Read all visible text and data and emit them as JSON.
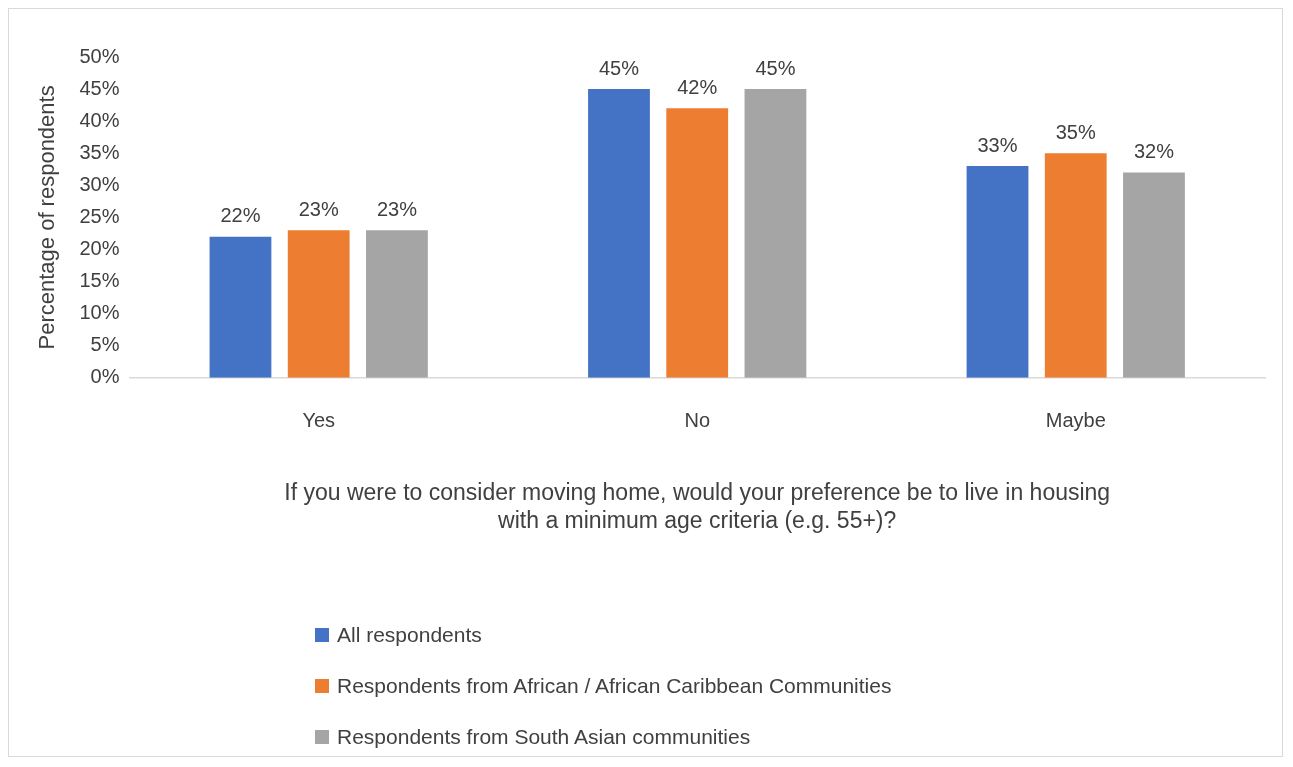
{
  "chart_data": {
    "type": "bar",
    "xlabel": "If you were to consider moving home, would your preference be to live in housing with a minimum age criteria (e.g. 55+)?",
    "ylabel": "Percentage of respondents",
    "categories": [
      "Yes",
      "No",
      "Maybe"
    ],
    "series": [
      {
        "name": "All respondents",
        "color": "#4472c4",
        "values": [
          22,
          45,
          33
        ],
        "value_labels": [
          "22%",
          "45%",
          "33%"
        ]
      },
      {
        "name": "Respondents from African / African Caribbean Communities",
        "color": "#ed7d31",
        "values": [
          23,
          42,
          35
        ],
        "value_labels": [
          "23%",
          "42%",
          "35%"
        ]
      },
      {
        "name": "Respondents from South Asian communities",
        "color": "#a5a5a5",
        "values": [
          23,
          45,
          32
        ],
        "value_labels": [
          "23%",
          "45%",
          "32%"
        ]
      }
    ],
    "ylim": [
      0,
      50
    ],
    "yticks": [
      {
        "value": 0,
        "label": "0%"
      },
      {
        "value": 5,
        "label": "5%"
      },
      {
        "value": 10,
        "label": "10%"
      },
      {
        "value": 15,
        "label": "15%"
      },
      {
        "value": 20,
        "label": "20%"
      },
      {
        "value": 25,
        "label": "25%"
      },
      {
        "value": 30,
        "label": "30%"
      },
      {
        "value": 35,
        "label": "35%"
      },
      {
        "value": 40,
        "label": "40%"
      },
      {
        "value": 45,
        "label": "45%"
      },
      {
        "value": 50,
        "label": "50%"
      }
    ],
    "grid": false,
    "legend": "bottom left"
  }
}
